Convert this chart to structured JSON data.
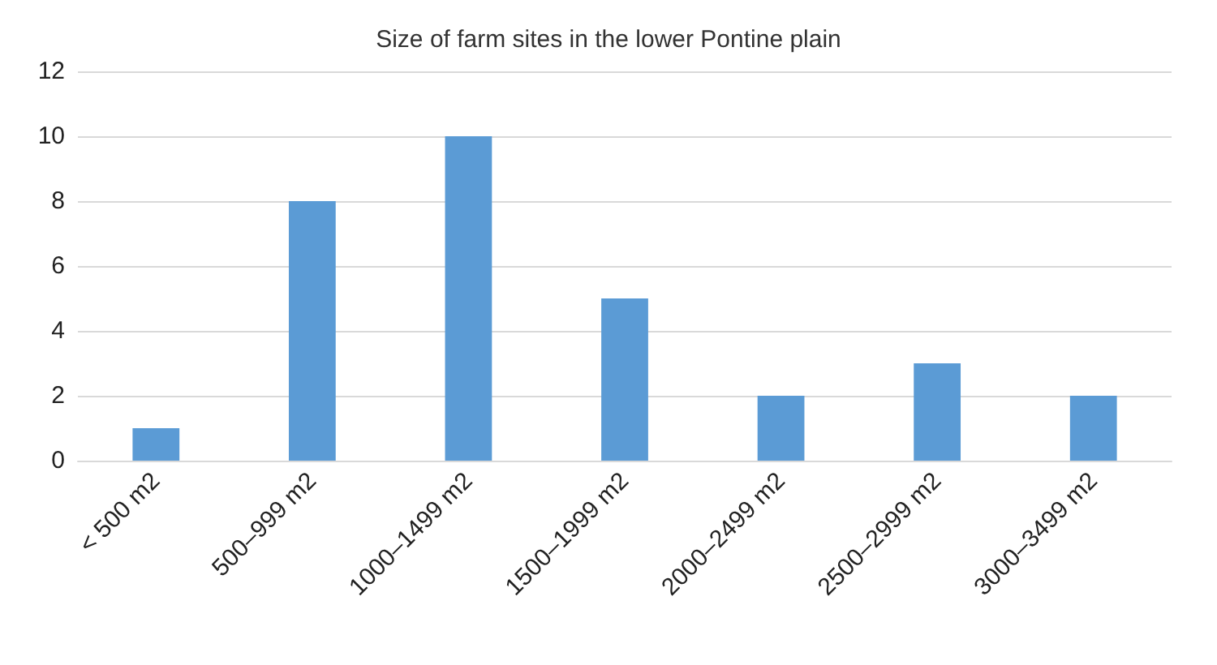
{
  "chart_data": {
    "type": "bar",
    "title": "Size of farm sites in the lower Pontine plain",
    "categories": [
      "< 500 m2",
      "500–999 m2",
      "1000–1499 m2",
      "1500–1999 m2",
      "2000–2499 m2",
      "2500–2999 m2",
      "3000–3499 m2"
    ],
    "values": [
      1,
      8,
      10,
      5,
      2,
      3,
      2
    ],
    "color": "#5b9bd5",
    "ylim": [
      0,
      12
    ],
    "yticks": [
      0,
      2,
      4,
      6,
      8,
      10,
      12
    ],
    "grid": "y"
  }
}
